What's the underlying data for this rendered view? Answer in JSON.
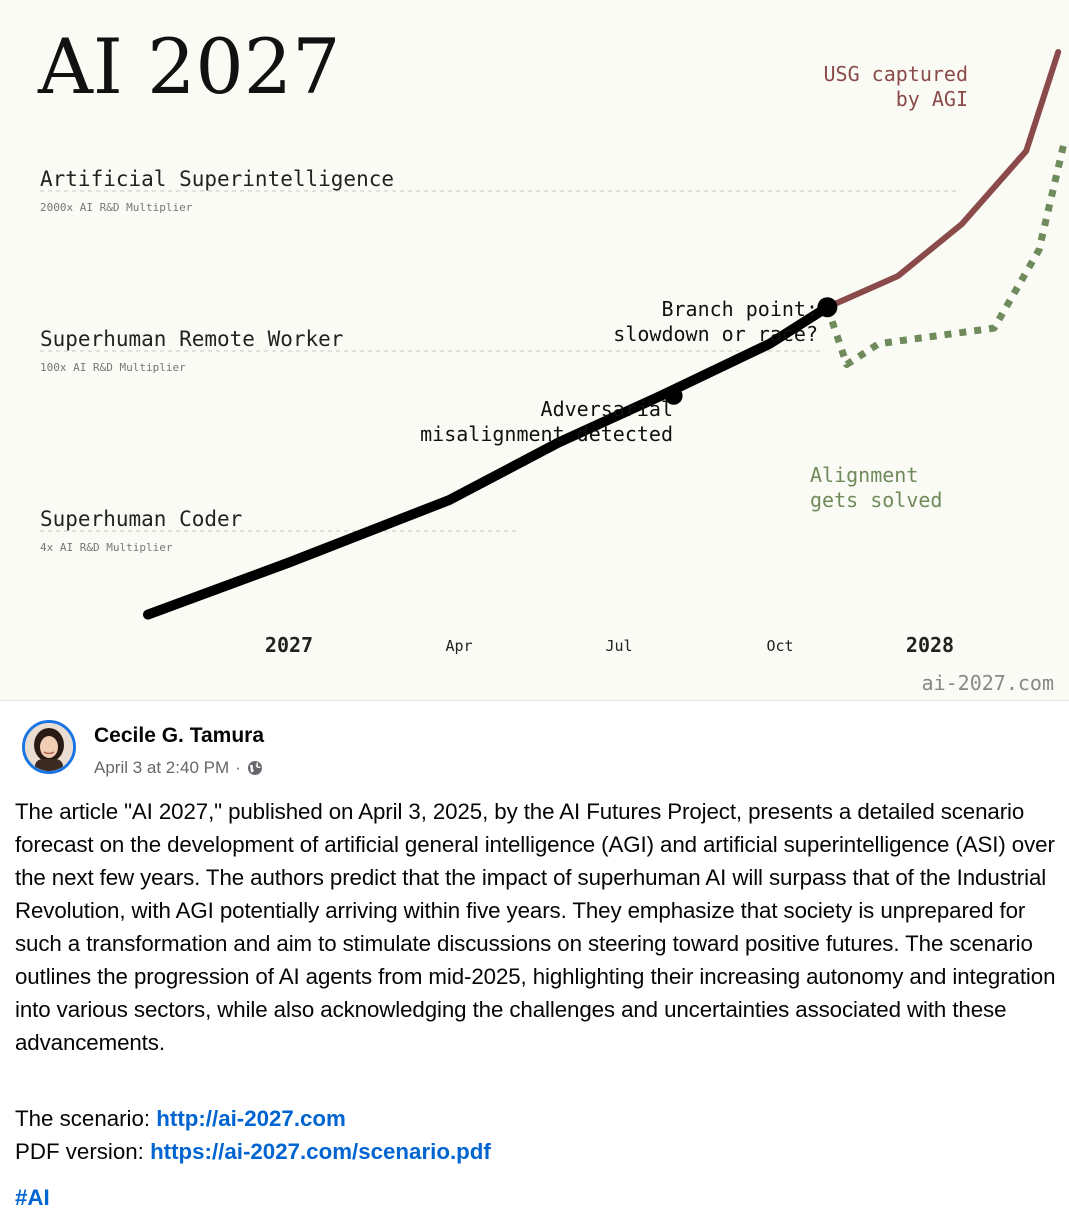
{
  "chart_data": {
    "type": "line",
    "title": "AI 2027",
    "watermark": "ai-2027.com",
    "x_ticks": [
      {
        "label": "2027",
        "bold": true
      },
      {
        "label": "Apr",
        "bold": false
      },
      {
        "label": "Jul",
        "bold": false
      },
      {
        "label": "Oct",
        "bold": false
      },
      {
        "label": "2028",
        "bold": true
      }
    ],
    "levels": [
      {
        "name": "Artificial Superintelligence",
        "multiplier": "2000x AI R&D Multiplier"
      },
      {
        "name": "Superhuman Remote Worker",
        "multiplier": "100x AI R&D Multiplier"
      },
      {
        "name": "Superhuman Coder",
        "multiplier": "4x AI R&D Multiplier"
      }
    ],
    "series": [
      {
        "name": "main",
        "color": "#000000",
        "style": "solid",
        "points": [
          [
            2026.78,
            0.1
          ],
          [
            2027.0,
            0.6
          ],
          [
            2027.25,
            1.2
          ],
          [
            2027.42,
            1.75
          ],
          [
            2027.58,
            2.2
          ],
          [
            2027.75,
            2.7
          ],
          [
            2027.84,
            3.05
          ]
        ]
      },
      {
        "name": "USG captured by AGI",
        "color": "#8b4a4a",
        "style": "solid",
        "points": [
          [
            2027.84,
            3.05
          ],
          [
            2027.95,
            3.35
          ],
          [
            2028.05,
            3.85
          ],
          [
            2028.15,
            4.55
          ],
          [
            2028.2,
            5.5
          ]
        ]
      },
      {
        "name": "Alignment gets solved",
        "color": "#6f8a5b",
        "style": "dotted",
        "points": [
          [
            2027.84,
            3.05
          ],
          [
            2027.87,
            2.5
          ],
          [
            2027.92,
            2.7
          ],
          [
            2028.1,
            2.85
          ],
          [
            2028.17,
            3.6
          ],
          [
            2028.21,
            4.65
          ]
        ]
      }
    ],
    "annotations": [
      "USG captured",
      "by AGI",
      "Branch point:",
      "slowdown or race?",
      "Adversarial",
      "misalignment detected",
      "Alignment",
      "gets solved"
    ],
    "markers": [
      {
        "name": "Adversarial misalignment detected",
        "x": 2027.6,
        "y": 2.2
      },
      {
        "name": "Branch point",
        "x": 2027.84,
        "y": 3.05
      }
    ]
  },
  "post": {
    "author": "Cecile G. Tamura",
    "timestamp": "April 3 at 2:40 PM",
    "separator": "·",
    "privacy_icon": "globe-icon",
    "body": "The article \"AI 2027,\" published on April 3, 2025, by the AI Futures Project, presents a detailed scenario forecast on the development of artificial general intelligence (AGI) and artificial superintelligence (ASI) over the next few years. The authors predict that the impact of superhuman AI will surpass that of the Industrial Revolution, with AGI potentially arriving within five years. They emphasize that society is unprepared for such a transformation and aim to stimulate discussions on steering toward positive futures. The scenario outlines the progression of AI agents from mid-2025, highlighting their increasing autonomy and integration into various sectors, while also acknowledging the challenges and uncertainties associated with these advancements.",
    "scenario_label": "The scenario: ",
    "scenario_link": "http://ai-2027.com",
    "pdf_label": "PDF version: ",
    "pdf_link": "https://ai-2027.com/scenario.pdf",
    "hashtag": "#AI"
  },
  "colors": {
    "link": "#0064d1",
    "avatar_ring": "#1b74e4",
    "chart_bg": "#fbfbf5",
    "race_line": "#8b4a4a",
    "slowdown_line": "#6f8a5b"
  }
}
